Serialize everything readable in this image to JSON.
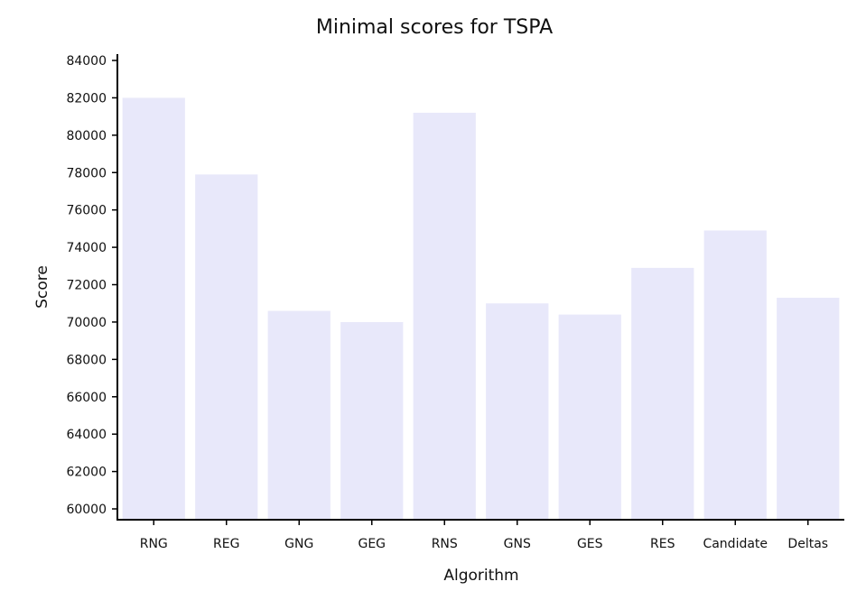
{
  "chart_data": {
    "type": "bar",
    "title": "Minimal scores for TSPA",
    "xlabel": "Algorithm",
    "ylabel": "Score",
    "categories": [
      "RNG",
      "REG",
      "GNG",
      "GEG",
      "RNS",
      "GNS",
      "GES",
      "RES",
      "Candidate",
      "Deltas"
    ],
    "values": [
      82000,
      77900,
      70600,
      70000,
      81200,
      71000,
      70400,
      72900,
      74900,
      71300
    ],
    "ylim": [
      60000,
      84000
    ],
    "yticks": [
      60000,
      62000,
      64000,
      66000,
      68000,
      70000,
      72000,
      74000,
      76000,
      78000,
      80000,
      82000,
      84000
    ],
    "grid": false,
    "bar_color": "#e8e8fa"
  }
}
